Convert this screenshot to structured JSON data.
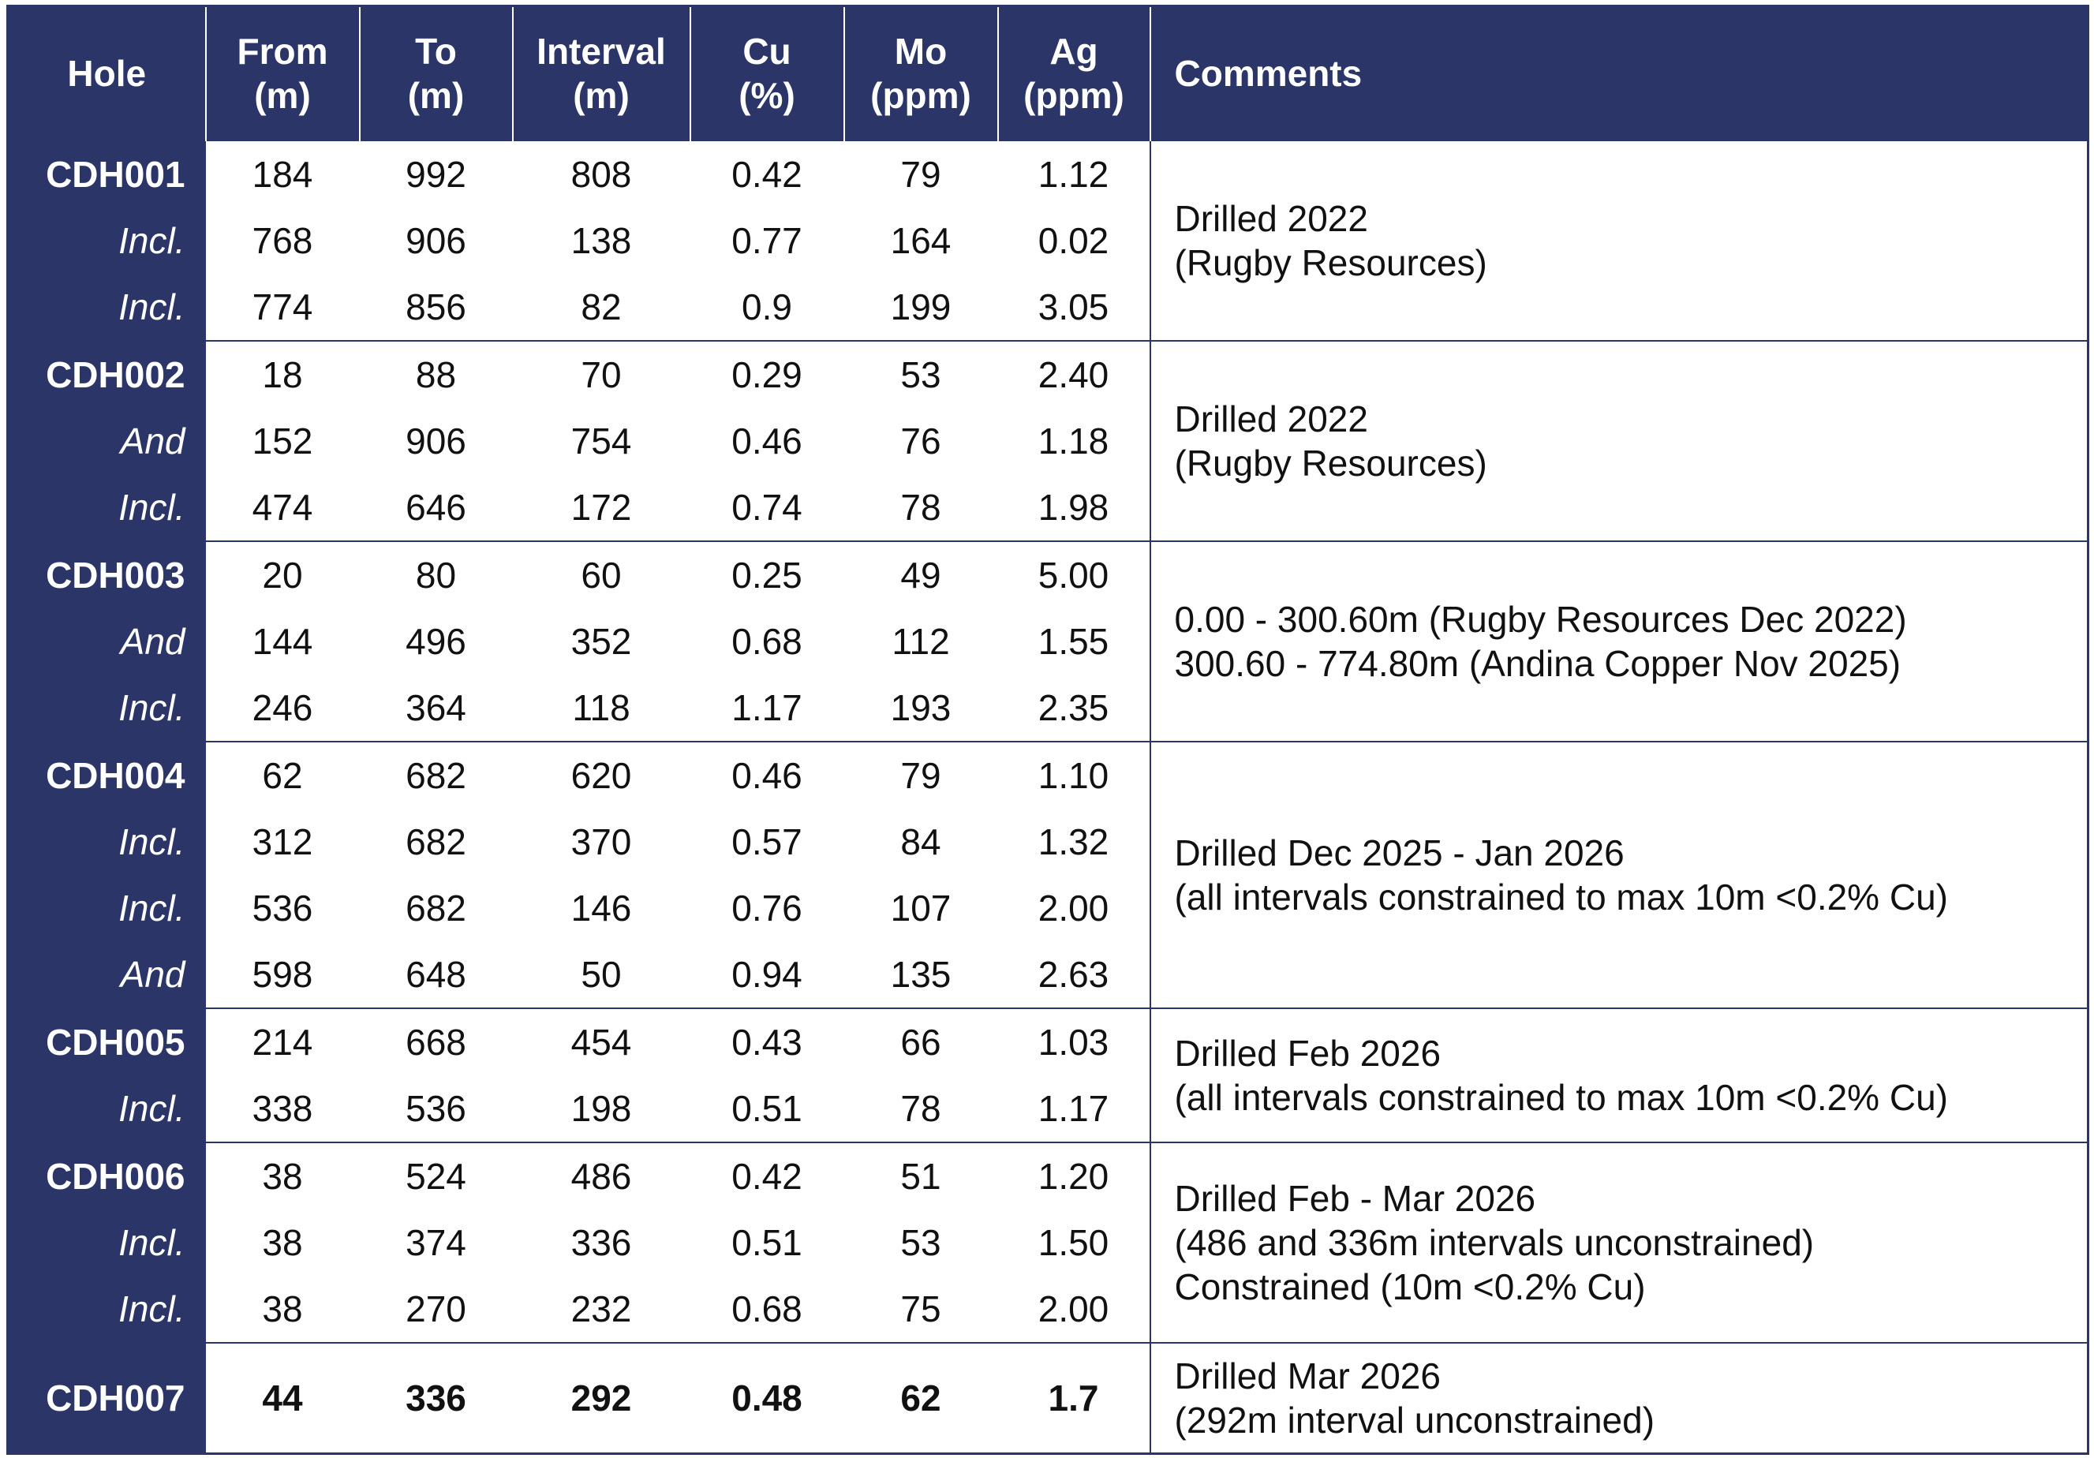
{
  "table": {
    "headers": [
      [
        "Hole"
      ],
      [
        "From",
        "(m)"
      ],
      [
        "To",
        "(m)"
      ],
      [
        "Interval",
        "(m)"
      ],
      [
        "Cu",
        "(%)"
      ],
      [
        "Mo",
        "(ppm)"
      ],
      [
        "Ag",
        "(ppm)"
      ],
      [
        "Comments"
      ]
    ],
    "groups": [
      {
        "rows": [
          [
            "CDH001",
            "184",
            "992",
            "808",
            "0.42",
            "79",
            "1.12"
          ],
          [
            "Incl.",
            "768",
            "906",
            "138",
            "0.77",
            "164",
            "0.02"
          ],
          [
            "Incl.",
            "774",
            "856",
            "82",
            "0.9",
            "199",
            "3.05"
          ]
        ],
        "comment": [
          "Drilled 2022",
          "(Rugby Resources)"
        ]
      },
      {
        "rows": [
          [
            "CDH002",
            "18",
            "88",
            "70",
            "0.29",
            "53",
            "2.40"
          ],
          [
            "And",
            "152",
            "906",
            "754",
            "0.46",
            "76",
            "1.18"
          ],
          [
            "Incl.",
            "474",
            "646",
            "172",
            "0.74",
            "78",
            "1.98"
          ]
        ],
        "comment": [
          "Drilled 2022",
          "(Rugby Resources)"
        ]
      },
      {
        "rows": [
          [
            "CDH003",
            "20",
            "80",
            "60",
            "0.25",
            "49",
            "5.00"
          ],
          [
            "And",
            "144",
            "496",
            "352",
            "0.68",
            "112",
            "1.55"
          ],
          [
            "Incl.",
            "246",
            "364",
            "118",
            "1.17",
            "193",
            "2.35"
          ]
        ],
        "comment": [
          "0.00 - 300.60m (Rugby Resources Dec 2022)",
          "300.60 - 774.80m (Andina Copper Nov 2025)"
        ]
      },
      {
        "rows": [
          [
            "CDH004",
            "62",
            "682",
            "620",
            "0.46",
            "79",
            "1.10"
          ],
          [
            "Incl.",
            "312",
            "682",
            "370",
            "0.57",
            "84",
            "1.32"
          ],
          [
            "Incl.",
            "536",
            "682",
            "146",
            "0.76",
            "107",
            "2.00"
          ],
          [
            "And",
            "598",
            "648",
            "50",
            "0.94",
            "135",
            "2.63"
          ]
        ],
        "comment": [
          "Drilled Dec 2025 - Jan 2026",
          "(all intervals constrained to max 10m <0.2% Cu)"
        ]
      },
      {
        "rows": [
          [
            "CDH005",
            "214",
            "668",
            "454",
            "0.43",
            "66",
            "1.03"
          ],
          [
            "Incl.",
            "338",
            "536",
            "198",
            "0.51",
            "78",
            "1.17"
          ]
        ],
        "comment": [
          "Drilled Feb 2026",
          "(all intervals constrained to max 10m <0.2% Cu)"
        ]
      },
      {
        "rows": [
          [
            "CDH006",
            "38",
            "524",
            "486",
            "0.42",
            "51",
            "1.20"
          ],
          [
            "Incl.",
            "38",
            "374",
            "336",
            "0.51",
            "53",
            "1.50"
          ],
          [
            "Incl.",
            "38",
            "270",
            "232",
            "0.68",
            "75",
            "2.00"
          ]
        ],
        "comment": [
          "Drilled Feb - Mar 2026",
          "(486 and 336m intervals unconstrained)",
          "Constrained (10m <0.2% Cu)"
        ]
      },
      {
        "rows": [
          [
            "CDH007",
            "44",
            "336",
            "292",
            "0.48",
            "62",
            "1.7"
          ]
        ],
        "comment": [
          "Drilled Mar 2026",
          "(292m interval unconstrained)"
        ],
        "bold": true
      }
    ]
  }
}
